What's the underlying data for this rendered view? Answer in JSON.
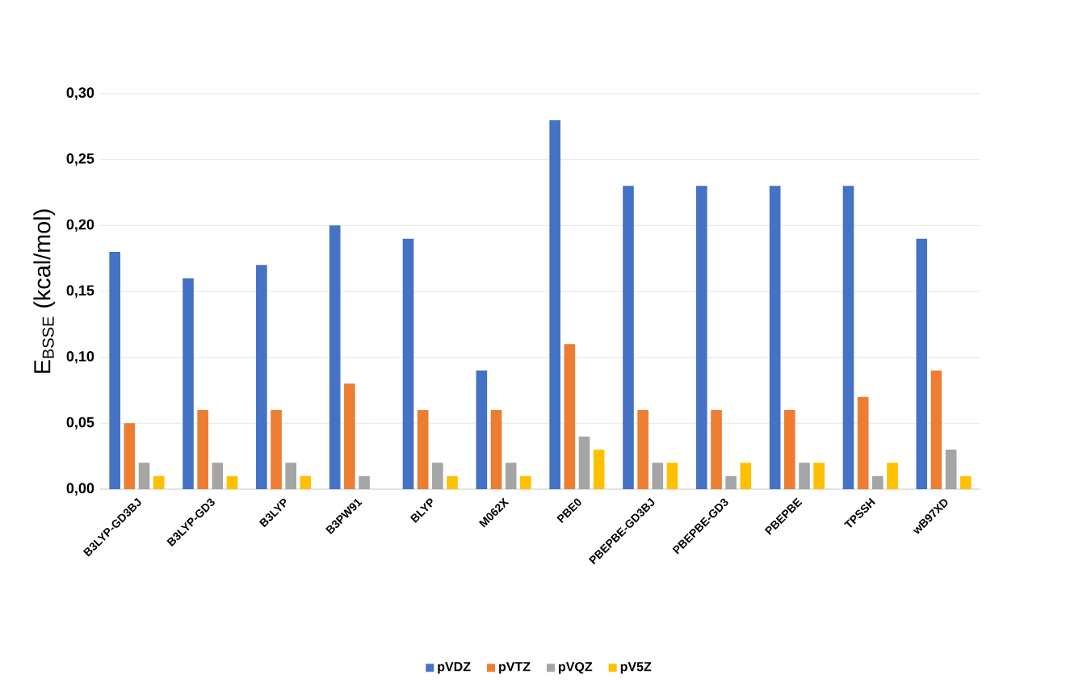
{
  "chart_data": {
    "type": "bar",
    "ylabel": "E$_{BSSE}$ (kcal/mol)",
    "categories": [
      "B3LYP-GD3BJ",
      "B3LYP-GD3",
      "B3LYP",
      "B3PW91",
      "BLYP",
      "M062X",
      "PBE0",
      "PBEPBE-GD3BJ",
      "PBEPBE-GD3",
      "PBEPBE",
      "TPSSH",
      "wB97XD"
    ],
    "series": [
      {
        "name": "pVDZ",
        "color": "#4472c4",
        "values": [
          0.18,
          0.16,
          0.17,
          0.2,
          0.19,
          0.09,
          0.28,
          0.23,
          0.23,
          0.23,
          0.23,
          0.19
        ]
      },
      {
        "name": "pVTZ",
        "color": "#ed7d31",
        "values": [
          0.05,
          0.06,
          0.06,
          0.08,
          0.06,
          0.06,
          0.11,
          0.06,
          0.06,
          0.06,
          0.07,
          0.09
        ]
      },
      {
        "name": "pVQZ",
        "color": "#a5a5a5",
        "values": [
          0.02,
          0.02,
          0.02,
          0.01,
          0.02,
          0.02,
          0.04,
          0.02,
          0.01,
          0.02,
          0.01,
          0.03
        ]
      },
      {
        "name": "pV5Z",
        "color": "#ffc000",
        "values": [
          0.01,
          0.01,
          0.01,
          0,
          0.01,
          0.01,
          0.03,
          0.02,
          0.02,
          0.02,
          0.02,
          0.01
        ]
      }
    ],
    "ylim": [
      0,
      0.3
    ],
    "yticks": [
      {
        "value": 0,
        "label": "0,00"
      },
      {
        "value": 0.05,
        "label": "0,05"
      },
      {
        "value": 0.1,
        "label": "0,10"
      },
      {
        "value": 0.15,
        "label": "0,15"
      },
      {
        "value": 0.2,
        "label": "0,20"
      },
      {
        "value": 0.25,
        "label": "0,25"
      },
      {
        "value": 0.3,
        "label": "0,30"
      }
    ],
    "grid": "y",
    "legend": "bottom"
  }
}
